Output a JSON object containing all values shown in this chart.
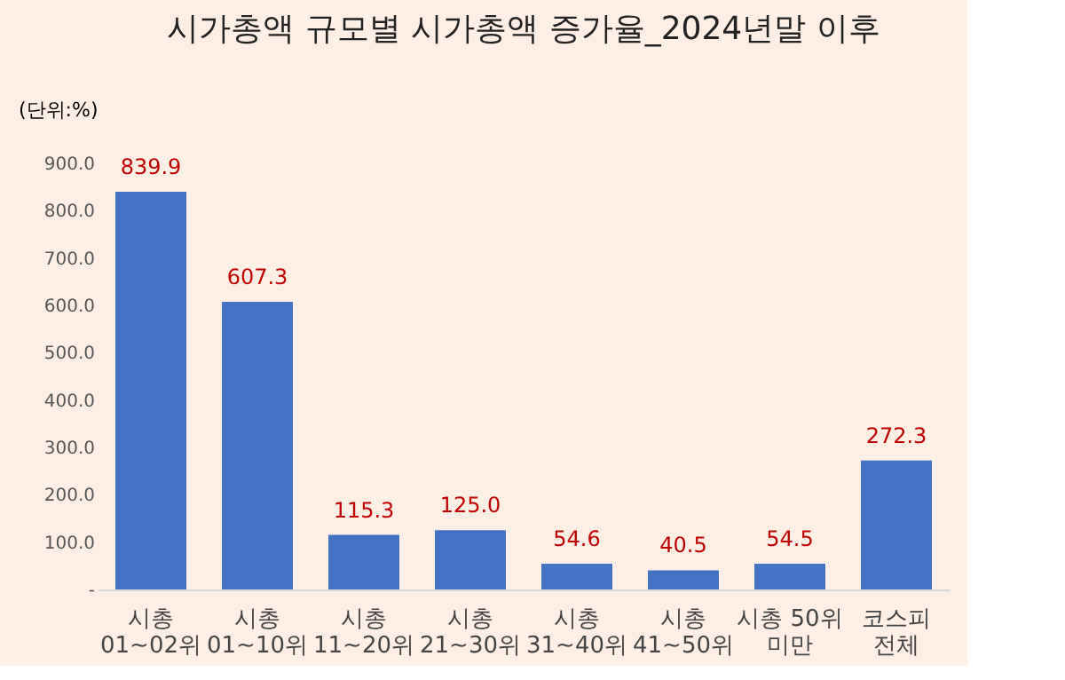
{
  "chart_data": {
    "type": "bar",
    "title": "시가총액 규모별 시가총액 증가율_2024년말 이후",
    "ylabel": "(단위:%)",
    "categories": [
      "시총\n01~02위",
      "시총\n01~10위",
      "시총\n11~20위",
      "시총\n21~30위",
      "시총\n31~40위",
      "시총\n41~50위",
      "시총 50위\n미만",
      "코스피\n전체"
    ],
    "values": [
      839.9,
      607.3,
      115.3,
      125.0,
      54.6,
      40.5,
      54.5,
      272.3
    ],
    "color": "#4472c4",
    "value_labels": [
      "839.9",
      "607.3",
      "115.3",
      "125.0",
      "54.6",
      "40.5",
      "54.5",
      "272.3"
    ],
    "ylim": [
      0,
      900
    ],
    "yticks": [
      {
        "value": 0,
        "label": "-"
      },
      {
        "value": 100,
        "label": "100.0"
      },
      {
        "value": 200,
        "label": "200.0"
      },
      {
        "value": 300,
        "label": "300.0"
      },
      {
        "value": 400,
        "label": "400.0"
      },
      {
        "value": 500,
        "label": "500.0"
      },
      {
        "value": 600,
        "label": "600.0"
      },
      {
        "value": 700,
        "label": "700.0"
      },
      {
        "value": 800,
        "label": "800.0"
      },
      {
        "value": 900,
        "label": "900.0"
      }
    ],
    "grid": false
  }
}
